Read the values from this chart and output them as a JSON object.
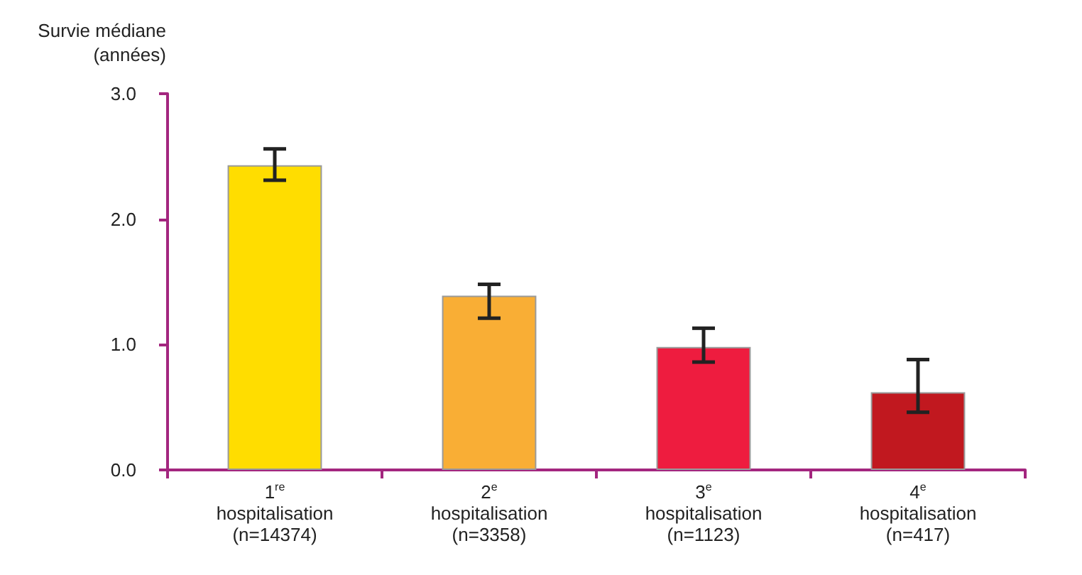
{
  "chart_data": {
    "type": "bar",
    "ylabel": "Survie médiane\n(années)",
    "categories": [
      "1$^{re}$\nhospitalisation\n(n=14374)",
      "2$^{e}$\nhospitalisation\n(n=3358)",
      "3$^{e}$\nhospitalisation\n(n=1123)",
      "4$^{e}$\nhospitalisation\n(n=417)"
    ],
    "values": [
      2.43,
      1.39,
      0.98,
      0.62
    ],
    "colors": [
      "#ffdd00",
      "#f9ae35",
      "#ee1c3f",
      "#c1181f"
    ],
    "errors": [
      [
        2.31,
        2.56
      ],
      [
        1.21,
        1.48
      ],
      [
        0.86,
        1.13
      ],
      [
        0.46,
        0.88
      ]
    ],
    "ylim": [
      0,
      3
    ],
    "yticks": [
      {
        "value": 0,
        "label": "0.0"
      },
      {
        "value": 1,
        "label": "1.0"
      },
      {
        "value": 2,
        "label": "2.0"
      },
      {
        "value": 3,
        "label": "3.0"
      }
    ],
    "grid": false
  }
}
